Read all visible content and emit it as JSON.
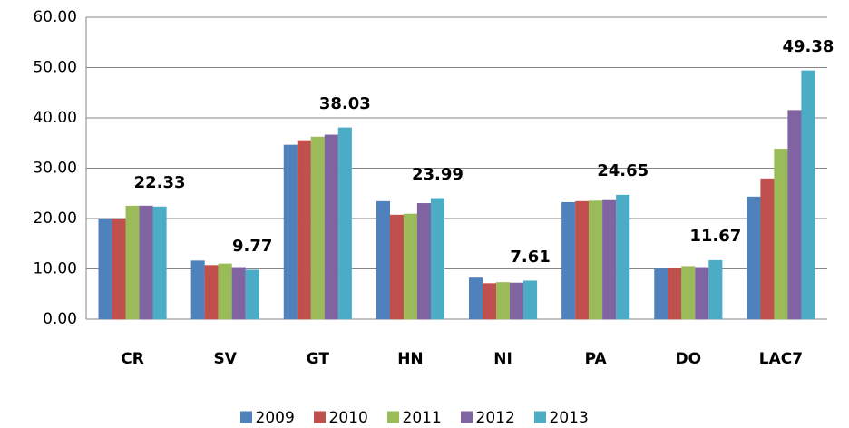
{
  "chart_data": {
    "type": "bar",
    "categories": [
      "CR",
      "SV",
      "GT",
      "HN",
      "NI",
      "PA",
      "DO",
      "LAC7"
    ],
    "series": [
      {
        "name": "2009",
        "color": "#4f81bd",
        "values": [
          19.9,
          11.6,
          34.6,
          23.4,
          8.2,
          23.2,
          10.0,
          24.3
        ]
      },
      {
        "name": "2010",
        "color": "#c0504d",
        "values": [
          19.9,
          10.7,
          35.5,
          20.7,
          7.1,
          23.4,
          10.1,
          27.9
        ]
      },
      {
        "name": "2011",
        "color": "#9bbb59",
        "values": [
          22.5,
          11.0,
          36.2,
          20.9,
          7.3,
          23.5,
          10.5,
          33.8
        ]
      },
      {
        "name": "2012",
        "color": "#8064a2",
        "values": [
          22.5,
          10.3,
          36.6,
          23.0,
          7.2,
          23.6,
          10.3,
          41.5
        ]
      },
      {
        "name": "2013",
        "color": "#4bacc6",
        "values": [
          22.33,
          9.77,
          38.03,
          23.99,
          7.61,
          24.65,
          11.67,
          49.38
        ],
        "show_values": true
      }
    ],
    "ylim": [
      0,
      60
    ],
    "yticks": [
      {
        "value": 0,
        "label": "0.00"
      },
      {
        "value": 10,
        "label": "10.00"
      },
      {
        "value": 20,
        "label": "20.00"
      },
      {
        "value": 30,
        "label": "30.00"
      },
      {
        "value": 40,
        "label": "40.00"
      },
      {
        "value": 50,
        "label": "50.00"
      },
      {
        "value": 60,
        "label": "60.00"
      }
    ],
    "grid": true,
    "legend": "bottom"
  }
}
